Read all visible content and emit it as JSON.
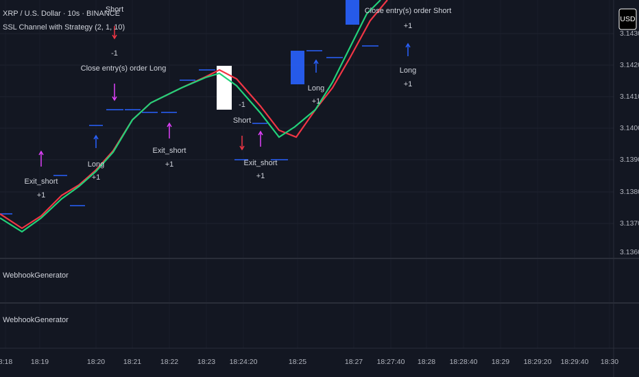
{
  "header": {
    "symbol": "XRP / U.S. Dollar · 10s · BINANCE",
    "indicator": "SSL Channel with Strategy (2, 1, 10)"
  },
  "currency": "USD",
  "price_axis": [
    "3.1430",
    "3.1420",
    "3.1410",
    "3.1400",
    "3.1390",
    "3.1380",
    "3.1370",
    "3.1360"
  ],
  "time_axis": [
    "8:18",
    "18:19",
    "18:20",
    "18:21",
    "18:22",
    "18:23",
    "18:24:20",
    "18:25",
    "18:27",
    "18:27:40",
    "18:28",
    "18:28:40",
    "18:29",
    "18:29:20",
    "18:29:40",
    "18:30"
  ],
  "annotations": [
    "Short",
    "-1",
    "Close entry(s) order Long",
    "Exit_short",
    "+1",
    "Long",
    "+1",
    "Exit_short",
    "+1",
    "-1",
    "Short",
    "Exit_short",
    "+1",
    "Long",
    "+1",
    "Close entry(s) order Short",
    "+1",
    "Long",
    "+1"
  ],
  "panes": [
    "WebhookGenerator",
    "WebhookGenerator"
  ]
}
